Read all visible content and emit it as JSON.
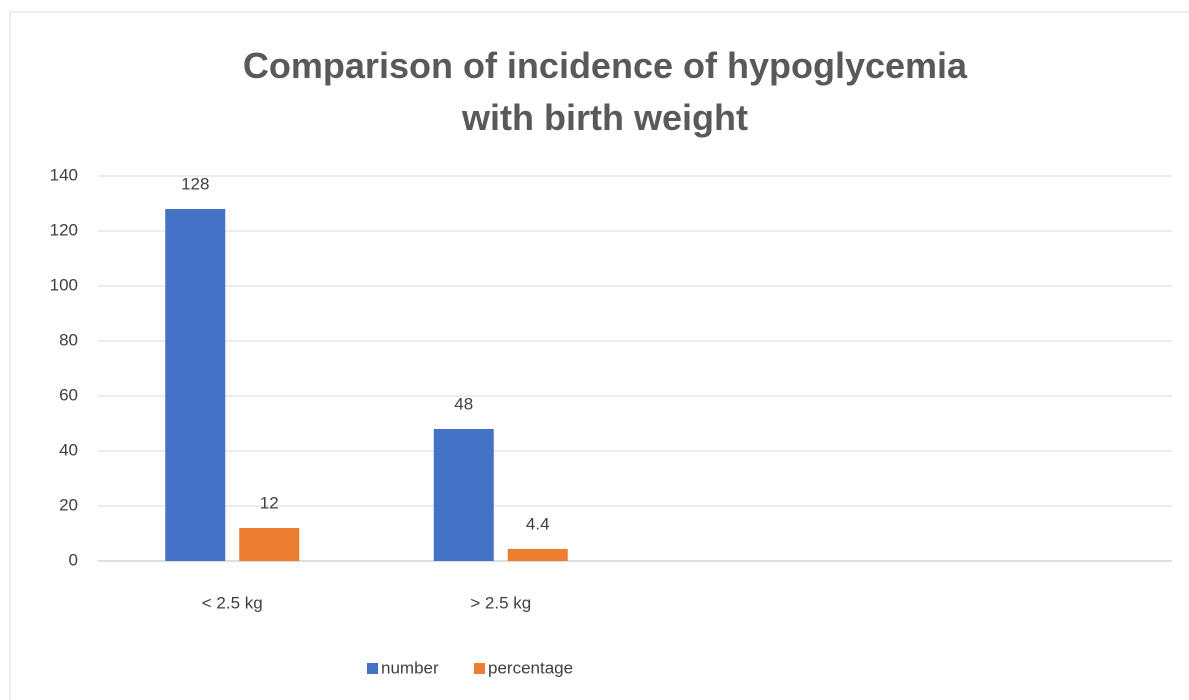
{
  "chart_data": {
    "type": "bar",
    "title": "Comparison of incidence of hypoglycemia with birth weight",
    "categories": [
      "< 2.5 kg",
      "> 2.5 kg",
      null,
      null
    ],
    "series": [
      {
        "name": "number",
        "color": "#4472c4",
        "values": [
          128,
          48,
          null,
          null
        ]
      },
      {
        "name": "percentage",
        "color": "#ed7d31",
        "values": [
          12,
          4.4,
          null,
          null
        ]
      }
    ],
    "ylim": [
      0,
      140
    ],
    "yticks": [
      0,
      20,
      40,
      60,
      80,
      100,
      120,
      140
    ],
    "grid": true,
    "legend": "bottom"
  }
}
